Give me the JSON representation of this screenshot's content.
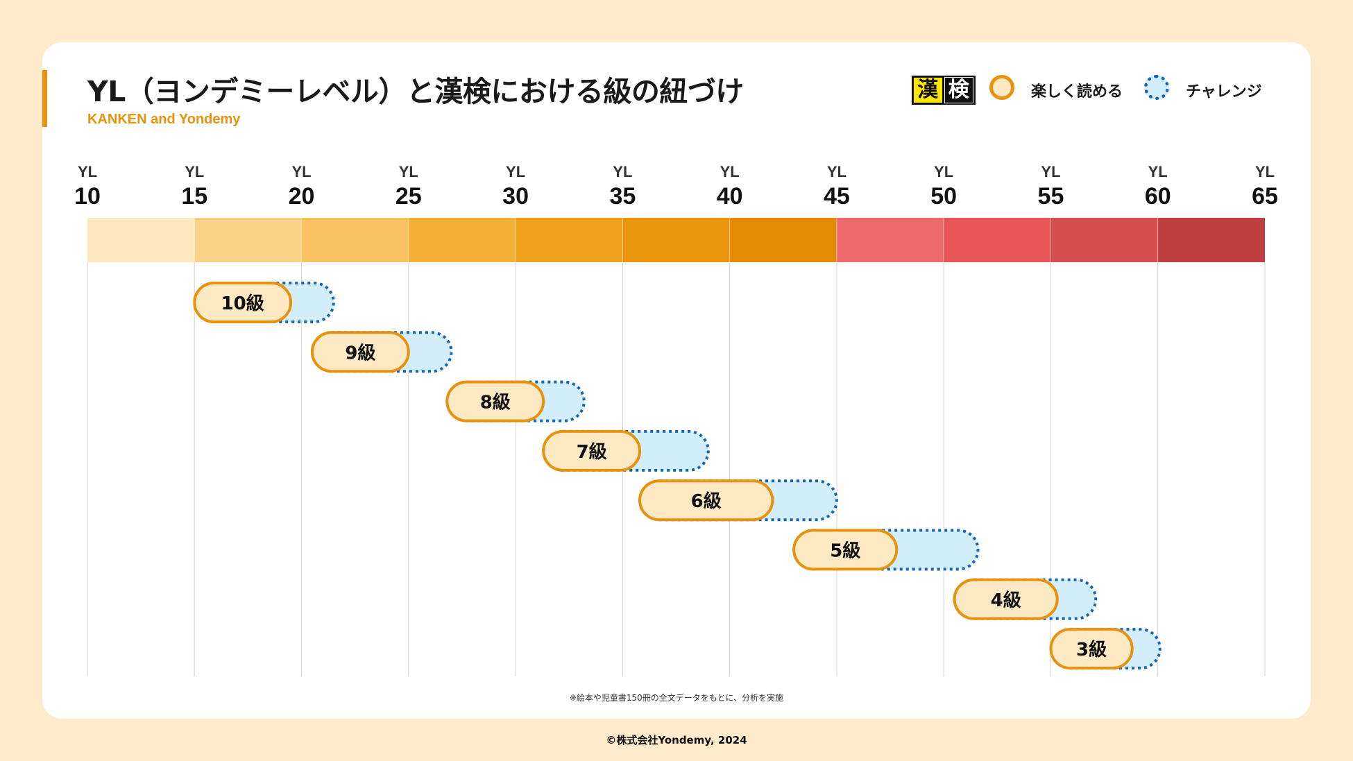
{
  "title": "YL（ヨンデミーレベル）と漢検における級の紐づけ",
  "subtitle": "KANKEN and Yondemy",
  "legend": {
    "logo_text": [
      "漢",
      "検"
    ],
    "easy_label": "楽しく読める",
    "challenge_label": "チャレンジ"
  },
  "note": "※絵本や児童書150冊の全文データをもとに、分析を実施",
  "copyright": "©株式会社Yondemy, 2024",
  "colors": {
    "easy_fill": "#FDE9C4",
    "easy_border": "#E8920E",
    "challenge_fill": "#D3EEFB",
    "challenge_border": "#1565B8",
    "band": [
      "#FDE7BE",
      "#F9D088",
      "#F8C262",
      "#F3B035",
      "#EFA01C",
      "#E9950E",
      "#E48A04",
      "#EC6B6C",
      "#E85556",
      "#D64D4E",
      "#BE3F40"
    ]
  },
  "chart_data": {
    "type": "range-bar",
    "x_axis": {
      "prefix": "YL",
      "ticks": [
        10,
        15,
        20,
        25,
        30,
        35,
        40,
        45,
        50,
        55,
        60,
        65
      ],
      "range": [
        10,
        65
      ]
    },
    "series": [
      {
        "name": "楽しく読める"
      },
      {
        "name": "チャレンジ"
      }
    ],
    "rows": [
      {
        "label": "10級",
        "easy": [
          15,
          19.5
        ],
        "challenge": [
          19.5,
          21.5
        ]
      },
      {
        "label": "9級",
        "easy": [
          20.5,
          25
        ],
        "challenge": [
          25,
          27
        ]
      },
      {
        "label": "8級",
        "easy": [
          26.8,
          31.3
        ],
        "challenge": [
          31.3,
          33.2
        ]
      },
      {
        "label": "7級",
        "easy": [
          31.3,
          35.8
        ],
        "challenge": [
          35.8,
          39
        ]
      },
      {
        "label": "6級",
        "easy": [
          35.8,
          42
        ],
        "challenge": [
          42,
          45
        ]
      },
      {
        "label": "5級",
        "easy": [
          43,
          47.8
        ],
        "challenge": [
          47.8,
          51.6
        ]
      },
      {
        "label": "4級",
        "easy": [
          50.5,
          55.3
        ],
        "challenge": [
          55.3,
          57.1
        ]
      },
      {
        "label": "3級",
        "easy": [
          55,
          58.8
        ],
        "challenge": [
          58.8,
          60.1
        ]
      }
    ]
  }
}
